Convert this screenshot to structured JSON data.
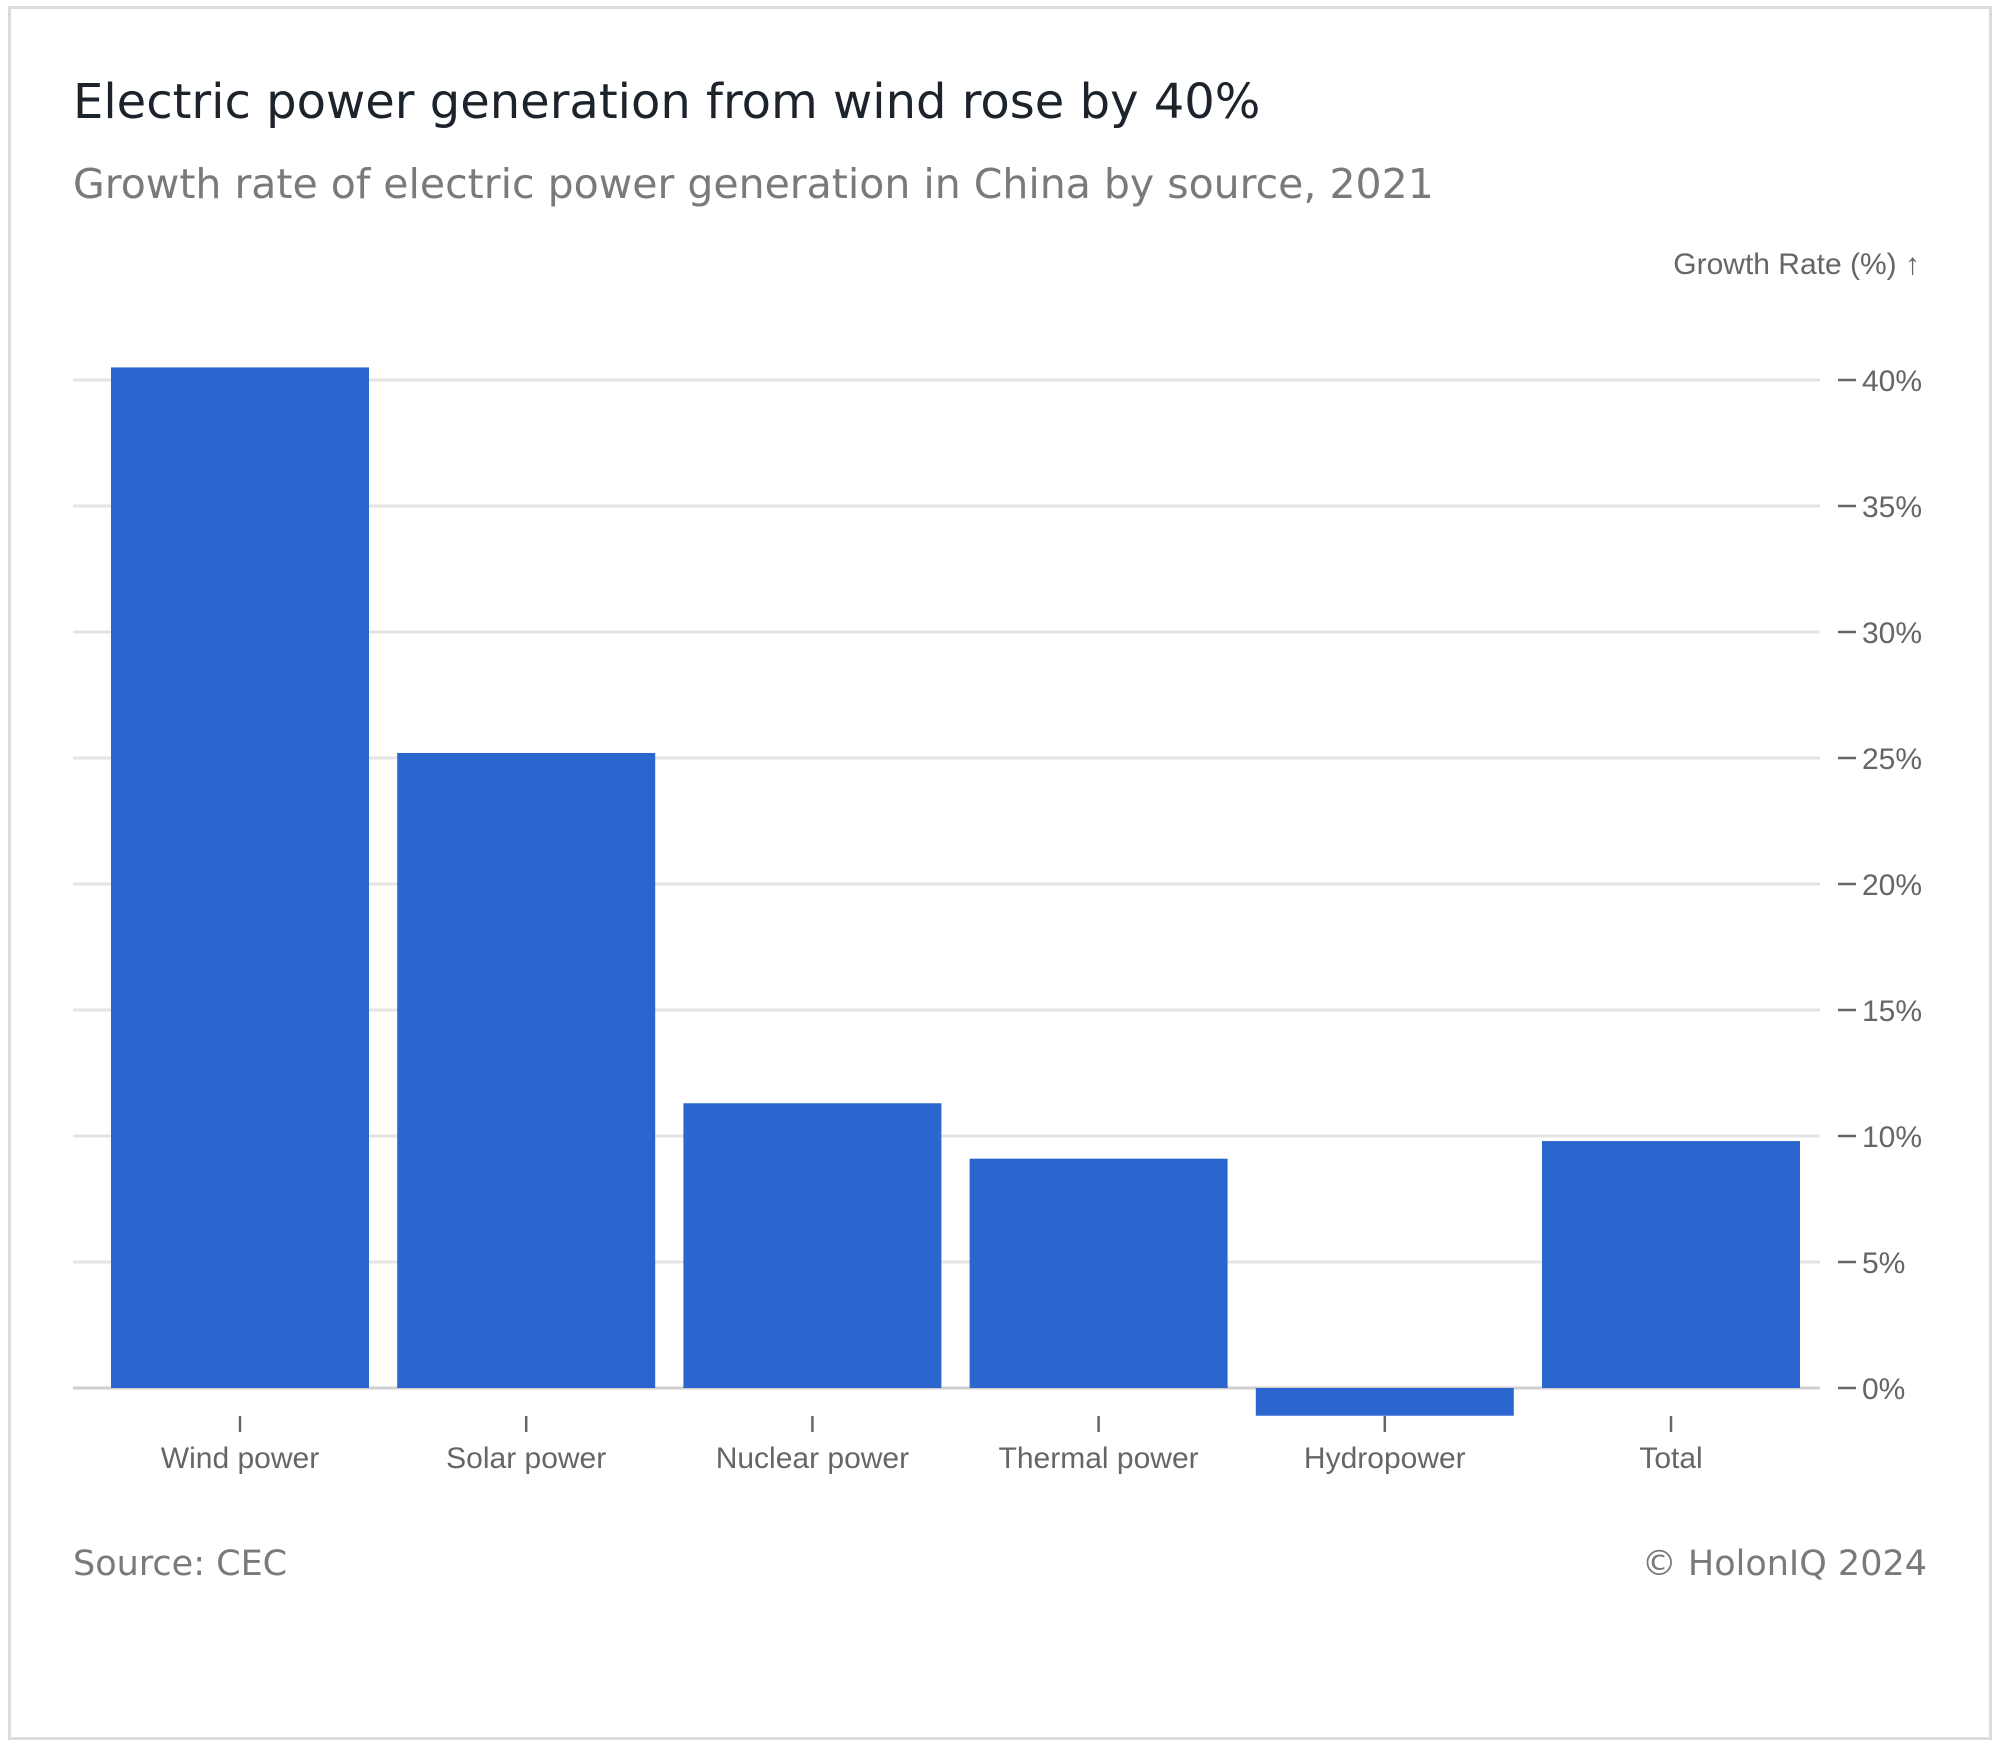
{
  "header": {
    "title": "Electric power generation from wind rose by 40%",
    "subtitle": "Growth rate of electric power generation in China by source, 2021"
  },
  "footer": {
    "source": "Source: CEC",
    "copyright": "© HolonIQ 2024"
  },
  "colors": {
    "bar": "#2b66cf",
    "grid": "#e4e4e4",
    "axis_text": "#666666"
  },
  "chart_data": {
    "type": "bar",
    "title": "Electric power generation from wind rose by 40%",
    "subtitle": "Growth rate of electric power generation in China by source, 2021",
    "ylabel": "Growth Rate (%) ↑",
    "categories": [
      "Wind power",
      "Solar power",
      "Nuclear power",
      "Thermal power",
      "Hydropower",
      "Total"
    ],
    "values": [
      40.5,
      25.2,
      11.3,
      9.1,
      -1.1,
      9.8
    ],
    "ylim": [
      -1.5,
      41
    ],
    "yticks": [
      0,
      5,
      10,
      15,
      20,
      25,
      30,
      35,
      40
    ],
    "ytick_labels": [
      "0%",
      "5%",
      "10%",
      "15%",
      "20%",
      "25%",
      "30%",
      "35%",
      "40%"
    ],
    "grid": true,
    "y_axis_side": "right",
    "legend": "none"
  }
}
